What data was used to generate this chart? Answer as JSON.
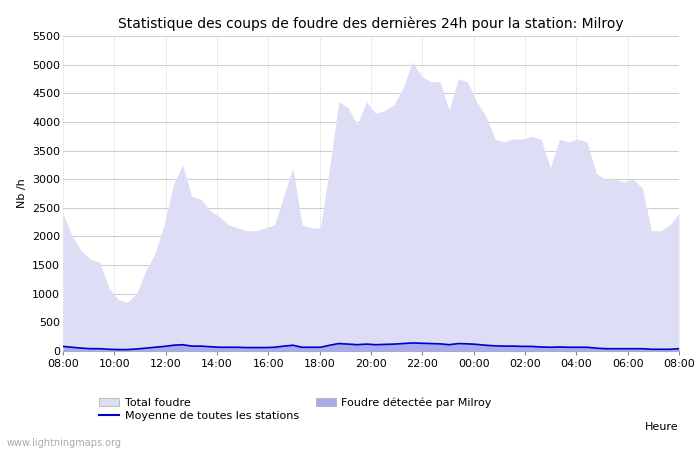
{
  "title": "Statistique des coups de foudre des dernières 24h pour la station: Milroy",
  "xlabel": "Heure",
  "ylabel": "Nb /h",
  "ylim": [
    0,
    5500
  ],
  "yticks": [
    0,
    500,
    1000,
    1500,
    2000,
    2500,
    3000,
    3500,
    4000,
    4500,
    5000,
    5500
  ],
  "xtick_labels": [
    "08:00",
    "10:00",
    "12:00",
    "14:00",
    "16:00",
    "18:00",
    "20:00",
    "22:00",
    "00:00",
    "02:00",
    "04:00",
    "06:00",
    "08:00"
  ],
  "watermark": "www.lightningmaps.org",
  "total_foudre_color": "#ddddf5",
  "foudre_milroy_color": "#aaaaee",
  "moyenne_color": "#0000cc",
  "background_color": "#ffffff",
  "grid_color": "#cccccc",
  "title_fontsize": 10,
  "axis_fontsize": 8,
  "tick_fontsize": 8,
  "total_foudre": [
    2400,
    2000,
    1750,
    1600,
    1550,
    1100,
    900,
    850,
    1000,
    1400,
    1700,
    2200,
    2900,
    3250,
    2700,
    2650,
    2450,
    2350,
    2200,
    2150,
    2100,
    2100,
    2150,
    2200,
    2700,
    3200,
    2200,
    2150,
    2150,
    3200,
    4350,
    4250,
    3950,
    4350,
    4150,
    4200,
    4300,
    4600,
    5050,
    4800,
    4700,
    4700,
    4200,
    4750,
    4700,
    4350,
    4100,
    3700,
    3650,
    3700,
    3700,
    3750,
    3700,
    3200,
    3700,
    3650,
    3700,
    3650,
    3100,
    3000,
    3000,
    2950,
    3000,
    2850,
    2100,
    2100,
    2200,
    2400
  ],
  "foudre_milroy": [
    100,
    80,
    60,
    50,
    50,
    40,
    30,
    30,
    40,
    60,
    80,
    100,
    120,
    130,
    100,
    100,
    90,
    80,
    80,
    80,
    70,
    70,
    70,
    80,
    100,
    120,
    80,
    80,
    80,
    120,
    150,
    140,
    130,
    140,
    130,
    135,
    140,
    150,
    160,
    155,
    150,
    145,
    130,
    150,
    145,
    135,
    120,
    110,
    105,
    105,
    100,
    100,
    90,
    85,
    90,
    80,
    80,
    80,
    60,
    50,
    50,
    50,
    50,
    50,
    40,
    40,
    40,
    50
  ],
  "moyenne": [
    80,
    65,
    50,
    40,
    40,
    30,
    25,
    25,
    35,
    50,
    65,
    80,
    100,
    110,
    85,
    85,
    75,
    65,
    65,
    65,
    60,
    60,
    60,
    65,
    85,
    100,
    65,
    65,
    65,
    100,
    130,
    120,
    110,
    120,
    110,
    115,
    120,
    130,
    140,
    135,
    130,
    125,
    110,
    130,
    125,
    115,
    100,
    90,
    85,
    85,
    80,
    80,
    70,
    65,
    70,
    65,
    65,
    65,
    50,
    40,
    40,
    40,
    40,
    40,
    30,
    30,
    30,
    40
  ]
}
